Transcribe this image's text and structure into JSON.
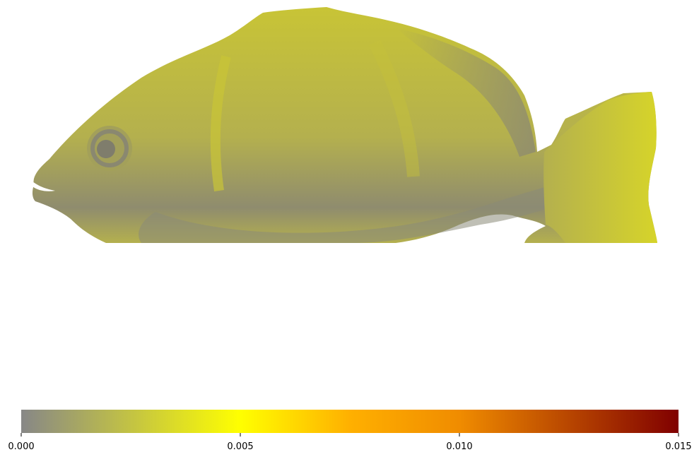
{
  "figure": {
    "subject_image": "fish-surface-heatmap",
    "background": "#ffffff"
  },
  "chart_data": {
    "type": "heatmap",
    "title": "",
    "colorbar": {
      "orientation": "horizontal",
      "range": [
        0.0,
        0.015
      ],
      "ticks": [
        0.0,
        0.005,
        0.01,
        0.015
      ],
      "tick_labels": [
        "0.000",
        "0.005",
        "0.010",
        "0.015"
      ],
      "colormap": [
        {
          "value": 0.0,
          "color": "#878787"
        },
        {
          "value": 0.005,
          "color": "#ffff00"
        },
        {
          "value": 0.0075,
          "color": "#ffb000"
        },
        {
          "value": 0.01,
          "color": "#f08c00"
        },
        {
          "value": 0.015,
          "color": "#800000"
        }
      ]
    },
    "surface_colors": {
      "body": "#b4b04e",
      "shadow": "#8f8c6e",
      "highlight": "#c8c436",
      "tail": "#d6d42a"
    }
  }
}
